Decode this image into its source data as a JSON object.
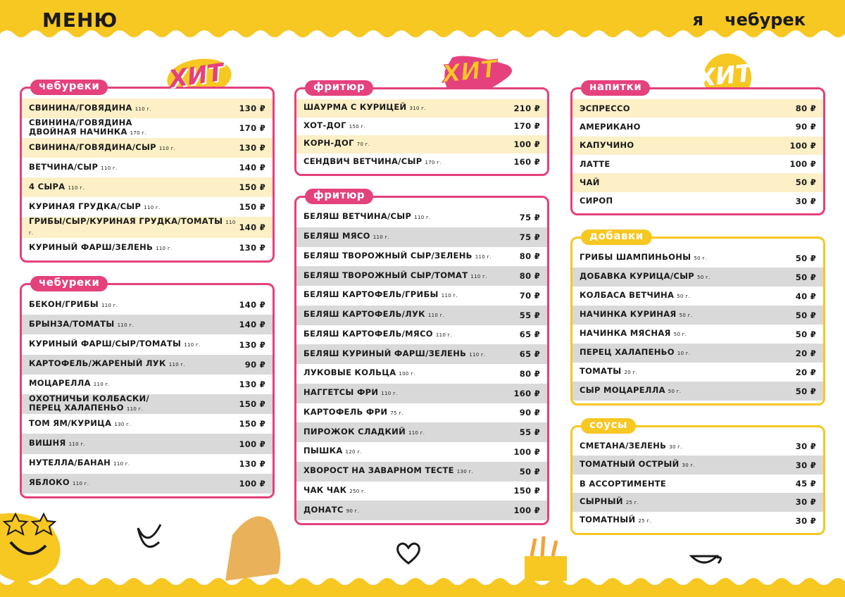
{
  "header": {
    "title": "МЕНЮ",
    "logo_left": "я",
    "logo_right": "чебурек"
  },
  "hits": [
    "ХИТ",
    "ХИТ",
    "ХИТ"
  ],
  "sections": [
    {
      "title": "чебуреки",
      "items": [
        {
          "name": "СВИНИНА/ГОВЯДИНА",
          "weight": "110 г.",
          "price": "130 ₽"
        },
        {
          "name": "СВИНИНА/ГОВЯДИНА\nДВОЙНАЯ НАЧИНКА",
          "weight": "170 г.",
          "price": "170 ₽"
        },
        {
          "name": "СВИНИНА/ГОВЯДИНА/СЫР",
          "weight": "110 г.",
          "price": "130 ₽"
        },
        {
          "name": "ВЕТЧИНА/СЫР",
          "weight": "110 г.",
          "price": "140 ₽"
        },
        {
          "name": "4 СЫРА",
          "weight": "110 г.",
          "price": "150 ₽"
        },
        {
          "name": "КУРИНАЯ ГРУДКА/СЫР",
          "weight": "110 г.",
          "price": "150 ₽"
        },
        {
          "name": "ГРИБЫ/СЫР/КУРИНАЯ ГРУДКА/ТОМАТЫ",
          "weight": "110 г.",
          "price": "140 ₽"
        },
        {
          "name": "КУРИНЫЙ ФАРШ/ЗЕЛЕНЬ",
          "weight": "110 г.",
          "price": "130 ₽"
        }
      ]
    },
    {
      "title": "чебуреки",
      "items": [
        {
          "name": "БЕКОН/ГРИБЫ",
          "weight": "110 г.",
          "price": "140 ₽"
        },
        {
          "name": "БРЫНЗА/ТОМАТЫ",
          "weight": "110 г.",
          "price": "140 ₽"
        },
        {
          "name": "КУРИНЫЙ ФАРШ/СЫР/ТОМАТЫ",
          "weight": "110 г.",
          "price": "130 ₽"
        },
        {
          "name": "КАРТОФЕЛЬ/ЖАРЕНЫЙ ЛУК",
          "weight": "110 г.",
          "price": "90 ₽"
        },
        {
          "name": "МОЦАРЕЛЛА",
          "weight": "110 г.",
          "price": "130 ₽"
        },
        {
          "name": "ОХОТНИЧЬИ КОЛБАСКИ/\nПЕРЕЦ ХАЛАПЕНЬО",
          "weight": "110 г.",
          "price": "150 ₽"
        },
        {
          "name": "ТОМ ЯМ/КУРИЦА",
          "weight": "130 г.",
          "price": "150 ₽"
        },
        {
          "name": "ВИШНЯ",
          "weight": "110 г.",
          "price": "100 ₽"
        },
        {
          "name": "НУТЕЛЛА/БАНАН",
          "weight": "110 г.",
          "price": "130 ₽"
        },
        {
          "name": "ЯБЛОКО",
          "weight": "110 г.",
          "price": "100 ₽"
        }
      ]
    },
    {
      "title": "фритюр",
      "items": [
        {
          "name": "ШАУРМА С КУРИЦЕЙ",
          "weight": "310 г.",
          "price": "210 ₽"
        },
        {
          "name": "ХОТ-ДОГ",
          "weight": "150 г.",
          "price": "170 ₽"
        },
        {
          "name": "КОРН-ДОГ",
          "weight": "70 г.",
          "price": "100 ₽"
        },
        {
          "name": "СЕНДВИЧ ВЕТЧИНА/СЫР",
          "weight": "170 г.",
          "price": "160 ₽"
        }
      ]
    },
    {
      "title": "фритюр",
      "items": [
        {
          "name": "БЕЛЯШ ВЕТЧИНА/СЫР",
          "weight": "110 г.",
          "price": "75 ₽"
        },
        {
          "name": "БЕЛЯШ МЯСО",
          "weight": "110 г.",
          "price": "75 ₽"
        },
        {
          "name": "БЕЛЯШ ТВОРОЖНЫЙ СЫР/ЗЕЛЕНЬ",
          "weight": "110 г.",
          "price": "80 ₽"
        },
        {
          "name": "БЕЛЯШ ТВОРОЖНЫЙ СЫР/ТОМАТ",
          "weight": "110 г.",
          "price": "80 ₽"
        },
        {
          "name": "БЕЛЯШ КАРТОФЕЛЬ/ГРИБЫ",
          "weight": "110 г.",
          "price": "70 ₽"
        },
        {
          "name": "БЕЛЯШ КАРТОФЕЛЬ/ЛУК",
          "weight": "110 г.",
          "price": "55 ₽"
        },
        {
          "name": "БЕЛЯШ КАРТОФЕЛЬ/МЯСО",
          "weight": "110 г.",
          "price": "65 ₽"
        },
        {
          "name": "БЕЛЯШ КУРИНЫЙ ФАРШ/ЗЕЛЕНЬ",
          "weight": "110 г.",
          "price": "65 ₽"
        },
        {
          "name": "ЛУКОВЫЕ КОЛЬЦА",
          "weight": "100 г.",
          "price": "80 ₽"
        },
        {
          "name": "НАГГЕТСЫ ФРИ",
          "weight": "110 г.",
          "price": "160 ₽"
        },
        {
          "name": "КАРТОФЕЛЬ ФРИ",
          "weight": "75 г.",
          "price": "90 ₽"
        },
        {
          "name": "ПИРОЖОК СЛАДКИЙ",
          "weight": "110 г.",
          "price": "55 ₽"
        },
        {
          "name": "ПЫШКА",
          "weight": "120 г.",
          "price": "100 ₽"
        },
        {
          "name": "ХВОРОСТ НА ЗАВАРНОМ ТЕСТЕ",
          "weight": "130 г.",
          "price": "50 ₽"
        },
        {
          "name": "ЧАК ЧАК",
          "weight": "250 г.",
          "price": "150 ₽"
        },
        {
          "name": "ДОНАТС",
          "weight": "90 г.",
          "price": "100 ₽"
        }
      ]
    },
    {
      "title": "напитки",
      "items": [
        {
          "name": "ЭСПРЕССО",
          "price": "80 ₽"
        },
        {
          "name": "АМЕРИКАНО",
          "price": "90 ₽"
        },
        {
          "name": "КАПУЧИНО",
          "price": "100 ₽"
        },
        {
          "name": "ЛАТТЕ",
          "price": "100 ₽"
        },
        {
          "name": "ЧАЙ",
          "price": "50 ₽"
        },
        {
          "name": "СИРОП",
          "price": "30 ₽"
        }
      ]
    },
    {
      "title": "добавки",
      "items": [
        {
          "name": "ГРИБЫ ШАМПИНЬОНЫ",
          "weight": "50 г.",
          "price": "50 ₽"
        },
        {
          "name": "ДОБАВКА КУРИЦА/СЫР",
          "weight": "50 г.",
          "price": "50 ₽"
        },
        {
          "name": "КОЛБАСА ВЕТЧИНА",
          "weight": "50 г.",
          "price": "40 ₽"
        },
        {
          "name": "НАЧИНКА КУРИНАЯ",
          "weight": "50 г.",
          "price": "50 ₽"
        },
        {
          "name": "НАЧИНКА МЯСНАЯ",
          "weight": "50 г.",
          "price": "50 ₽"
        },
        {
          "name": "ПЕРЕЦ ХАЛАПЕНЬО",
          "weight": "10 г.",
          "price": "20 ₽"
        },
        {
          "name": "ТОМАТЫ",
          "weight": "20 г.",
          "price": "20 ₽"
        },
        {
          "name": "СЫР МОЦАРЕЛЛА",
          "weight": "50 г.",
          "price": "50 ₽"
        }
      ]
    },
    {
      "title": "соусы",
      "items": [
        {
          "name": "СМЕТАНА/ЗЕЛЕНЬ",
          "weight": "30 г.",
          "price": "30 ₽"
        },
        {
          "name": "ТОМАТНЫЙ ОСТРЫЙ",
          "weight": "30 г.",
          "price": "30 ₽"
        },
        {
          "name": "В АССОРТИМЕНТЕ",
          "price": "45 ₽"
        },
        {
          "name": "СЫРНЫЙ",
          "weight": "25 г.",
          "price": "30 ₽"
        },
        {
          "name": "ТОМАТНЫЙ",
          "weight": "25 г.",
          "price": "30 ₽"
        }
      ]
    }
  ]
}
